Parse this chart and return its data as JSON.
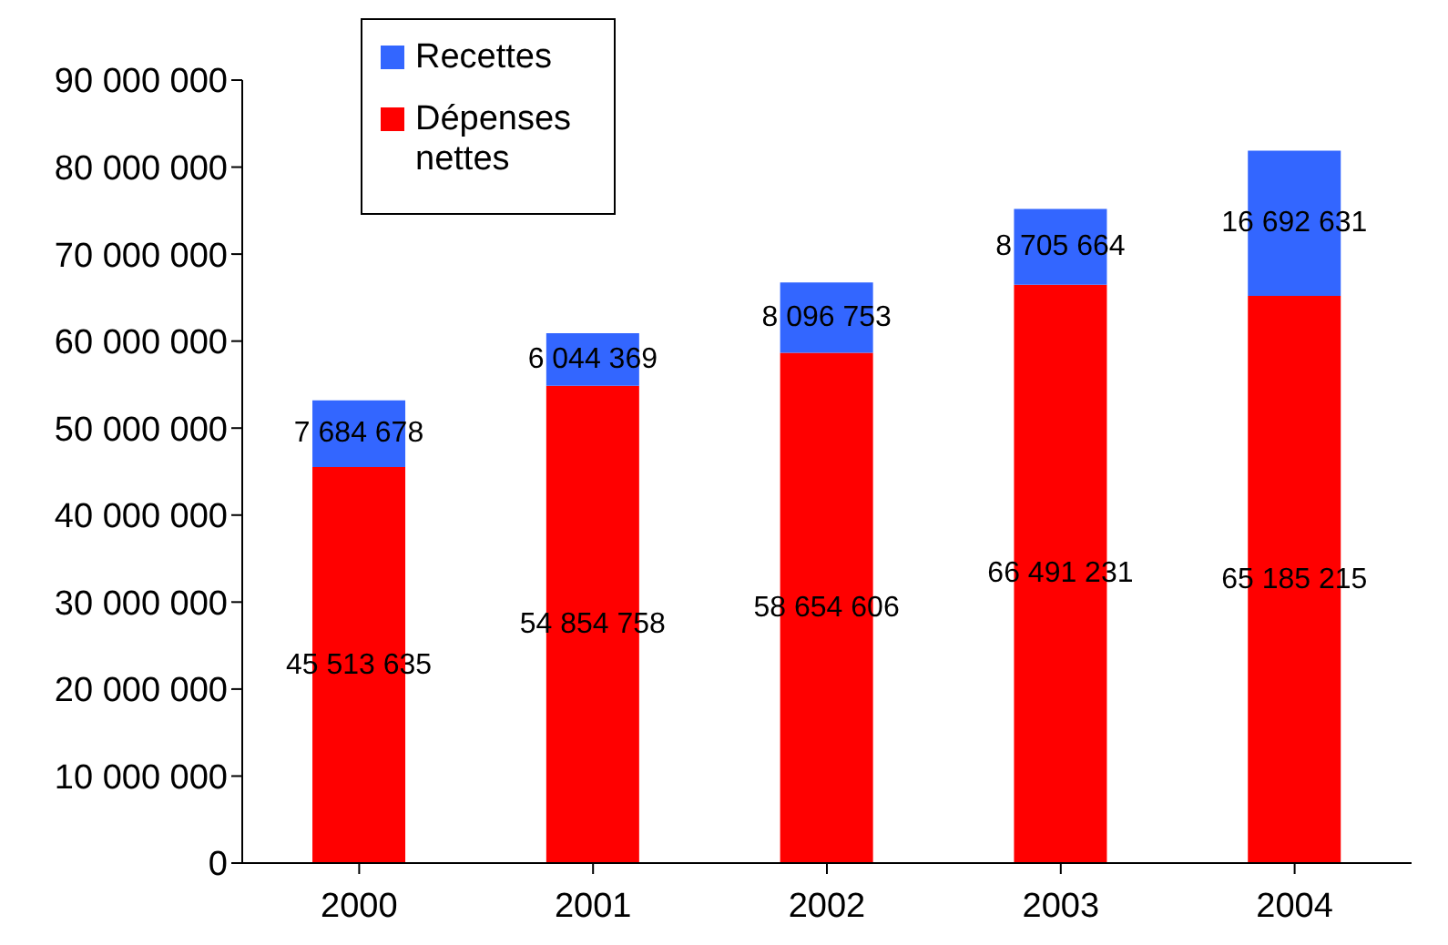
{
  "chart_data": {
    "type": "bar",
    "stacked": true,
    "categories": [
      "2000",
      "2001",
      "2002",
      "2003",
      "2004"
    ],
    "series": [
      {
        "name": "Dépenses nettes",
        "color": "#ff0000",
        "values": [
          45513635,
          54854758,
          58654606,
          66491231,
          65185215
        ],
        "value_labels": [
          "45 513 635",
          "54 854 758",
          "58 654 606",
          "66 491 231",
          "65 185 215"
        ]
      },
      {
        "name": "Recettes",
        "color": "#3366ff",
        "values": [
          7684678,
          6044369,
          8096753,
          8705664,
          16692631
        ],
        "value_labels": [
          "7 684 678",
          "6 044 369",
          "8 096 753",
          "8 705 664",
          "16 692 631"
        ]
      }
    ],
    "ylim": [
      0,
      90000000
    ],
    "yticks": [
      {
        "value": 0,
        "label": "0"
      },
      {
        "value": 10000000,
        "label": "10 000 000"
      },
      {
        "value": 20000000,
        "label": "20 000 000"
      },
      {
        "value": 30000000,
        "label": "30 000 000"
      },
      {
        "value": 40000000,
        "label": "40 000 000"
      },
      {
        "value": 50000000,
        "label": "50 000 000"
      },
      {
        "value": 60000000,
        "label": "60 000 000"
      },
      {
        "value": 70000000,
        "label": "70 000 000"
      },
      {
        "value": 80000000,
        "label": "80 000 000"
      },
      {
        "value": 90000000,
        "label": "90 000 000"
      }
    ],
    "legend": "top left",
    "grid": false
  }
}
